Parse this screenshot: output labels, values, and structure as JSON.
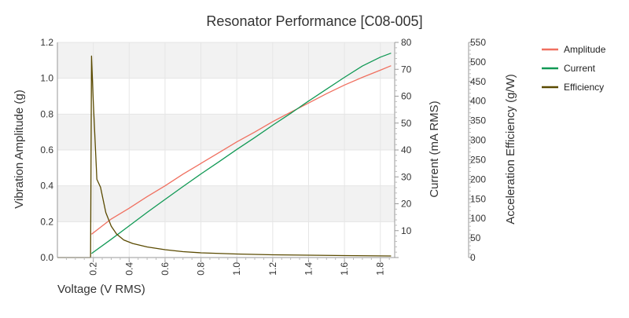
{
  "chart_data": {
    "type": "line",
    "title": "Resonator Performance [C08-005]",
    "xlabel": "Voltage (V RMS)",
    "xlim": [
      0,
      1.88
    ],
    "xticks": [
      "0.2",
      "0.4",
      "0.6",
      "0.8",
      "1.0",
      "1.2",
      "1.4",
      "1.6",
      "1.8"
    ],
    "axes": {
      "left": {
        "label": "Vibration Amplitude (g)",
        "ylim": [
          0,
          1.2
        ],
        "ticks": [
          "0.0",
          "0.2",
          "0.4",
          "0.6",
          "0.8",
          "1.0",
          "1.2"
        ]
      },
      "right1": {
        "label": "Current (mA RMS)",
        "ylim": [
          0,
          80
        ],
        "ticks": [
          "10",
          "20",
          "30",
          "40",
          "50",
          "60",
          "70",
          "80"
        ]
      },
      "right2": {
        "label": "Acceleration Efficiency (g/W)",
        "ylim": [
          0,
          550
        ],
        "ticks": [
          "0",
          "50",
          "100",
          "150",
          "200",
          "250",
          "300",
          "350",
          "400",
          "450",
          "500",
          "550"
        ]
      }
    },
    "grid": true,
    "legend_position": "top-right",
    "series": [
      {
        "name": "Amplitude",
        "axis": "left",
        "color": "#f07060",
        "x": [
          0.19,
          0.3,
          0.4,
          0.5,
          0.6,
          0.7,
          0.8,
          0.9,
          1.0,
          1.1,
          1.2,
          1.3,
          1.4,
          1.5,
          1.6,
          1.7,
          1.8,
          1.86
        ],
        "y": [
          0.13,
          0.215,
          0.275,
          0.34,
          0.4,
          0.465,
          0.525,
          0.585,
          0.645,
          0.7,
          0.758,
          0.81,
          0.862,
          0.914,
          0.962,
          1.005,
          1.045,
          1.07
        ]
      },
      {
        "name": "Current",
        "axis": "right1",
        "color": "#119955",
        "x": [
          0.19,
          0.3,
          0.4,
          0.5,
          0.6,
          0.7,
          0.8,
          0.9,
          1.0,
          1.1,
          1.2,
          1.3,
          1.4,
          1.5,
          1.6,
          1.7,
          1.8,
          1.86
        ],
        "y": [
          1.5,
          6.8,
          11.8,
          16.8,
          21.6,
          26.4,
          31.1,
          35.6,
          40.2,
          44.6,
          49.2,
          53.6,
          58.2,
          62.6,
          67.0,
          71.2,
          74.5,
          76.0
        ]
      },
      {
        "name": "Efficiency",
        "axis": "right2",
        "color": "#5a4a00",
        "x": [
          0,
          0.18,
          0.185,
          0.19,
          0.2,
          0.21,
          0.22,
          0.24,
          0.27,
          0.3,
          0.33,
          0.37,
          0.42,
          0.5,
          0.6,
          0.7,
          0.8,
          1.0,
          1.2,
          1.4,
          1.6,
          1.86
        ],
        "y": [
          0,
          0,
          0,
          515,
          400,
          300,
          200,
          180,
          115,
          80,
          60,
          45,
          36,
          27,
          20,
          15,
          12,
          9,
          7,
          6,
          5,
          4
        ]
      }
    ]
  }
}
